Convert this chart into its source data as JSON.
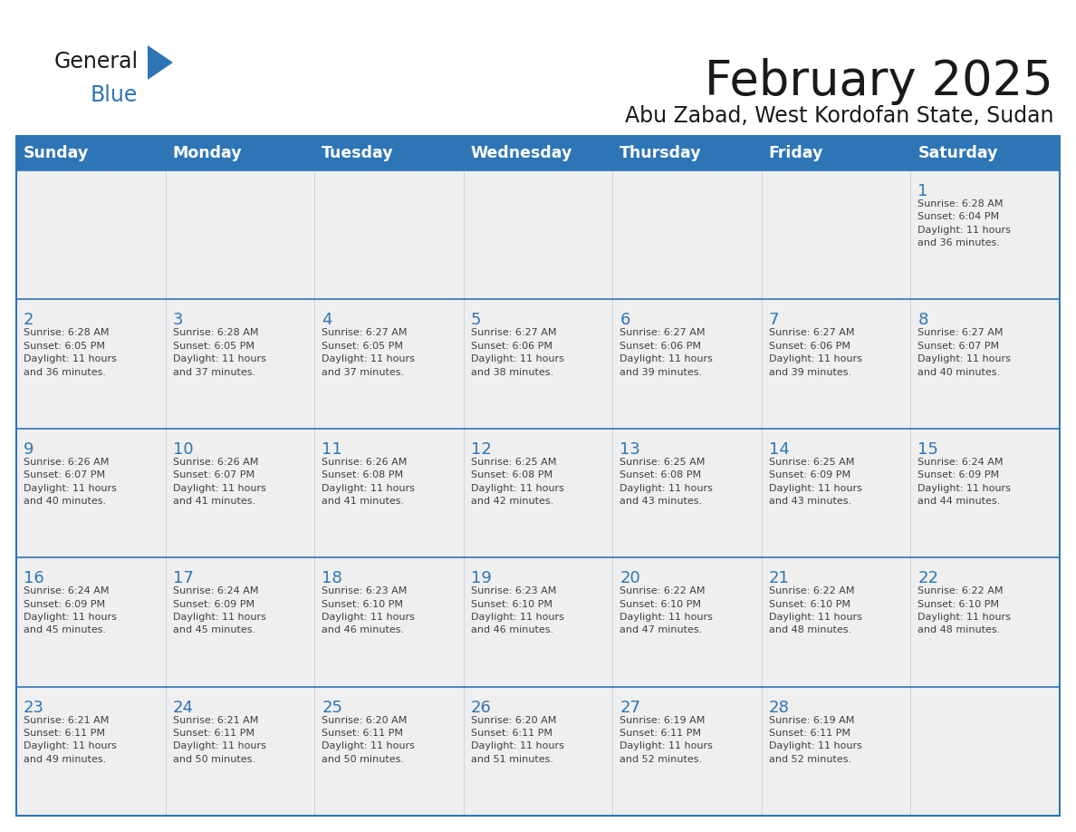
{
  "title": "February 2025",
  "subtitle": "Abu Zabad, West Kordofan State, Sudan",
  "header_bg": "#2E75B6",
  "header_text_color": "#FFFFFF",
  "cell_bg": "#EFEFEF",
  "day_headers": [
    "Sunday",
    "Monday",
    "Tuesday",
    "Wednesday",
    "Thursday",
    "Friday",
    "Saturday"
  ],
  "title_color": "#1a1a1a",
  "subtitle_color": "#1a1a1a",
  "day_num_color": "#2E75B6",
  "cell_text_color": "#404040",
  "border_color": "#2E75B6",
  "logo_general_color": "#1a1a1a",
  "logo_blue_color": "#2E75B6",
  "logo_triangle_color": "#2E75B6",
  "calendar_data": [
    [
      {
        "day": null,
        "info": ""
      },
      {
        "day": null,
        "info": ""
      },
      {
        "day": null,
        "info": ""
      },
      {
        "day": null,
        "info": ""
      },
      {
        "day": null,
        "info": ""
      },
      {
        "day": null,
        "info": ""
      },
      {
        "day": 1,
        "info": "Sunrise: 6:28 AM\nSunset: 6:04 PM\nDaylight: 11 hours\nand 36 minutes."
      }
    ],
    [
      {
        "day": 2,
        "info": "Sunrise: 6:28 AM\nSunset: 6:05 PM\nDaylight: 11 hours\nand 36 minutes."
      },
      {
        "day": 3,
        "info": "Sunrise: 6:28 AM\nSunset: 6:05 PM\nDaylight: 11 hours\nand 37 minutes."
      },
      {
        "day": 4,
        "info": "Sunrise: 6:27 AM\nSunset: 6:05 PM\nDaylight: 11 hours\nand 37 minutes."
      },
      {
        "day": 5,
        "info": "Sunrise: 6:27 AM\nSunset: 6:06 PM\nDaylight: 11 hours\nand 38 minutes."
      },
      {
        "day": 6,
        "info": "Sunrise: 6:27 AM\nSunset: 6:06 PM\nDaylight: 11 hours\nand 39 minutes."
      },
      {
        "day": 7,
        "info": "Sunrise: 6:27 AM\nSunset: 6:06 PM\nDaylight: 11 hours\nand 39 minutes."
      },
      {
        "day": 8,
        "info": "Sunrise: 6:27 AM\nSunset: 6:07 PM\nDaylight: 11 hours\nand 40 minutes."
      }
    ],
    [
      {
        "day": 9,
        "info": "Sunrise: 6:26 AM\nSunset: 6:07 PM\nDaylight: 11 hours\nand 40 minutes."
      },
      {
        "day": 10,
        "info": "Sunrise: 6:26 AM\nSunset: 6:07 PM\nDaylight: 11 hours\nand 41 minutes."
      },
      {
        "day": 11,
        "info": "Sunrise: 6:26 AM\nSunset: 6:08 PM\nDaylight: 11 hours\nand 41 minutes."
      },
      {
        "day": 12,
        "info": "Sunrise: 6:25 AM\nSunset: 6:08 PM\nDaylight: 11 hours\nand 42 minutes."
      },
      {
        "day": 13,
        "info": "Sunrise: 6:25 AM\nSunset: 6:08 PM\nDaylight: 11 hours\nand 43 minutes."
      },
      {
        "day": 14,
        "info": "Sunrise: 6:25 AM\nSunset: 6:09 PM\nDaylight: 11 hours\nand 43 minutes."
      },
      {
        "day": 15,
        "info": "Sunrise: 6:24 AM\nSunset: 6:09 PM\nDaylight: 11 hours\nand 44 minutes."
      }
    ],
    [
      {
        "day": 16,
        "info": "Sunrise: 6:24 AM\nSunset: 6:09 PM\nDaylight: 11 hours\nand 45 minutes."
      },
      {
        "day": 17,
        "info": "Sunrise: 6:24 AM\nSunset: 6:09 PM\nDaylight: 11 hours\nand 45 minutes."
      },
      {
        "day": 18,
        "info": "Sunrise: 6:23 AM\nSunset: 6:10 PM\nDaylight: 11 hours\nand 46 minutes."
      },
      {
        "day": 19,
        "info": "Sunrise: 6:23 AM\nSunset: 6:10 PM\nDaylight: 11 hours\nand 46 minutes."
      },
      {
        "day": 20,
        "info": "Sunrise: 6:22 AM\nSunset: 6:10 PM\nDaylight: 11 hours\nand 47 minutes."
      },
      {
        "day": 21,
        "info": "Sunrise: 6:22 AM\nSunset: 6:10 PM\nDaylight: 11 hours\nand 48 minutes."
      },
      {
        "day": 22,
        "info": "Sunrise: 6:22 AM\nSunset: 6:10 PM\nDaylight: 11 hours\nand 48 minutes."
      }
    ],
    [
      {
        "day": 23,
        "info": "Sunrise: 6:21 AM\nSunset: 6:11 PM\nDaylight: 11 hours\nand 49 minutes."
      },
      {
        "day": 24,
        "info": "Sunrise: 6:21 AM\nSunset: 6:11 PM\nDaylight: 11 hours\nand 50 minutes."
      },
      {
        "day": 25,
        "info": "Sunrise: 6:20 AM\nSunset: 6:11 PM\nDaylight: 11 hours\nand 50 minutes."
      },
      {
        "day": 26,
        "info": "Sunrise: 6:20 AM\nSunset: 6:11 PM\nDaylight: 11 hours\nand 51 minutes."
      },
      {
        "day": 27,
        "info": "Sunrise: 6:19 AM\nSunset: 6:11 PM\nDaylight: 11 hours\nand 52 minutes."
      },
      {
        "day": 28,
        "info": "Sunrise: 6:19 AM\nSunset: 6:11 PM\nDaylight: 11 hours\nand 52 minutes."
      },
      {
        "day": null,
        "info": ""
      }
    ]
  ]
}
